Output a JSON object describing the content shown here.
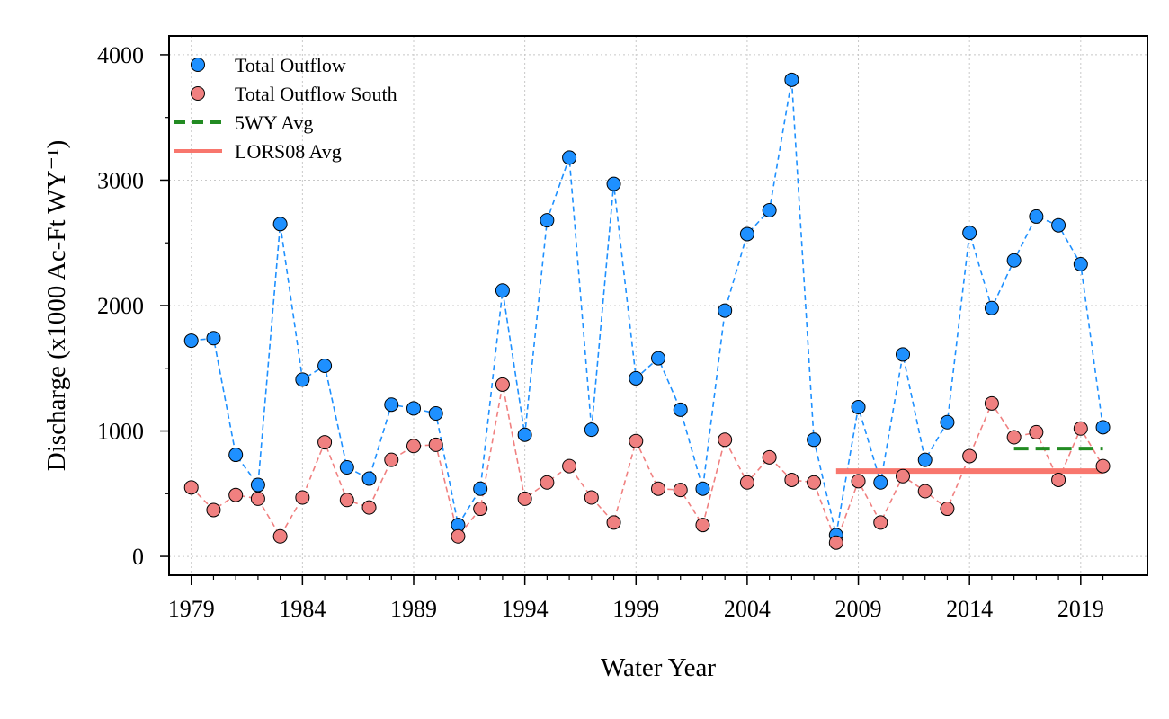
{
  "chart_data": {
    "type": "line",
    "xlabel": "Water Year",
    "ylabel": "Discharge (x1000 Ac-Ft WY⁻¹)",
    "xlim": [
      1978,
      2022
    ],
    "ylim": [
      -150,
      4150
    ],
    "x_ticks": [
      1979,
      1984,
      1989,
      1994,
      1999,
      2004,
      2009,
      2014,
      2019
    ],
    "y_ticks": [
      0,
      1000,
      2000,
      3000,
      4000
    ],
    "grid": true,
    "legend_position": "top-left",
    "x": [
      1979,
      1980,
      1981,
      1982,
      1983,
      1984,
      1985,
      1986,
      1987,
      1988,
      1989,
      1990,
      1991,
      1992,
      1993,
      1994,
      1995,
      1996,
      1997,
      1998,
      1999,
      2000,
      2001,
      2002,
      2003,
      2004,
      2005,
      2006,
      2007,
      2008,
      2009,
      2010,
      2011,
      2012,
      2013,
      2014,
      2015,
      2016,
      2017,
      2018,
      2019,
      2020
    ],
    "series": [
      {
        "name": "Total Outflow",
        "style": "points-dashed",
        "color": "#1E90FF",
        "values": [
          1720,
          1740,
          810,
          570,
          2650,
          1410,
          1520,
          710,
          620,
          1210,
          1180,
          1140,
          250,
          540,
          2120,
          970,
          2680,
          3180,
          1010,
          2970,
          1420,
          1580,
          1170,
          540,
          1960,
          2570,
          2760,
          3800,
          930,
          170,
          1190,
          590,
          1610,
          770,
          1070,
          2580,
          1980,
          2360,
          2710,
          2640,
          2330,
          1030
        ]
      },
      {
        "name": "Total Outflow South",
        "style": "points-dashed",
        "color": "#F08080",
        "values": [
          550,
          370,
          490,
          460,
          160,
          470,
          910,
          450,
          390,
          770,
          880,
          890,
          160,
          380,
          1370,
          460,
          590,
          720,
          470,
          270,
          920,
          540,
          530,
          250,
          930,
          590,
          790,
          610,
          590,
          110,
          600,
          270,
          640,
          520,
          380,
          800,
          1220,
          950,
          990,
          610,
          1020,
          720
        ]
      },
      {
        "name": "5WY Avg",
        "style": "dashed-line",
        "color": "#228B22",
        "x_range": [
          2016,
          2020
        ],
        "value": 860
      },
      {
        "name": "LORS08 Avg",
        "style": "solid-line",
        "color": "#F8766D",
        "x_range": [
          2008,
          2020
        ],
        "value": 680
      }
    ]
  }
}
